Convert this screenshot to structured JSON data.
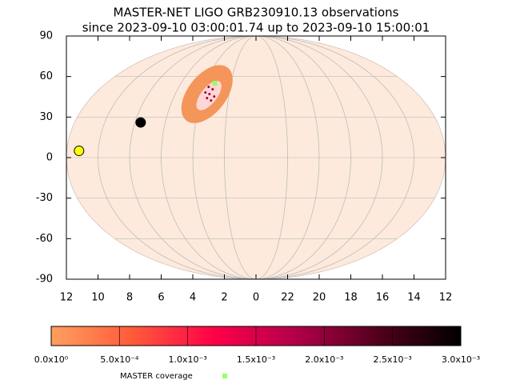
{
  "chart_data": {
    "type": "skymap",
    "title": "MASTER-NET LIGO GRB230910.13 observations",
    "subtitle": "since 2023-09-10 03:00:01.74 up to 2023-09-10 15:00:01",
    "xlim": [
      12,
      -12
    ],
    "xticks": [
      12,
      10,
      8,
      6,
      4,
      2,
      0,
      {
        "value": -2,
        "label": "22"
      },
      {
        "value": -4,
        "label": "20"
      },
      {
        "value": -6,
        "label": "18"
      },
      {
        "value": -8,
        "label": "16"
      },
      {
        "value": -10,
        "label": "14"
      },
      {
        "value": -12,
        "label": "12"
      }
    ],
    "ylim": [
      -90,
      90
    ],
    "yticks": [
      -90,
      -60,
      -30,
      0,
      30,
      60,
      90
    ],
    "grid": true,
    "sky_color": "#fdeadc",
    "localization": {
      "x": 3.1,
      "y": 47,
      "color": "#f4955a"
    },
    "sun": {
      "x": 11.2,
      "y": 5,
      "color": "#ffff00"
    },
    "moon": {
      "x": 7.3,
      "y": 26,
      "color": "#000000"
    },
    "series": [
      {
        "name": "MASTER coverage",
        "color": "#99ff66",
        "x": [
          2.6
        ],
        "values": [
          55
        ]
      }
    ],
    "colorbar": {
      "lim": [
        0,
        0.003
      ],
      "colors": [
        "#ff9f5f",
        "#ff5a3a",
        "#ff0048",
        "#b0004a",
        "#50001a",
        "#000000"
      ],
      "ticks": [
        {
          "value": 0,
          "label": "0.0x10⁰"
        },
        {
          "value": 0.0005,
          "label": "5.0x10⁻⁴"
        },
        {
          "value": 0.001,
          "label": "1.0x10⁻³"
        },
        {
          "value": 0.0015,
          "label": "1.5x10⁻³"
        },
        {
          "value": 0.002,
          "label": "2.0x10⁻³"
        },
        {
          "value": 0.0025,
          "label": "2.5x10⁻³"
        },
        {
          "value": 0.003,
          "label": "3.0x10⁻³"
        }
      ]
    }
  }
}
